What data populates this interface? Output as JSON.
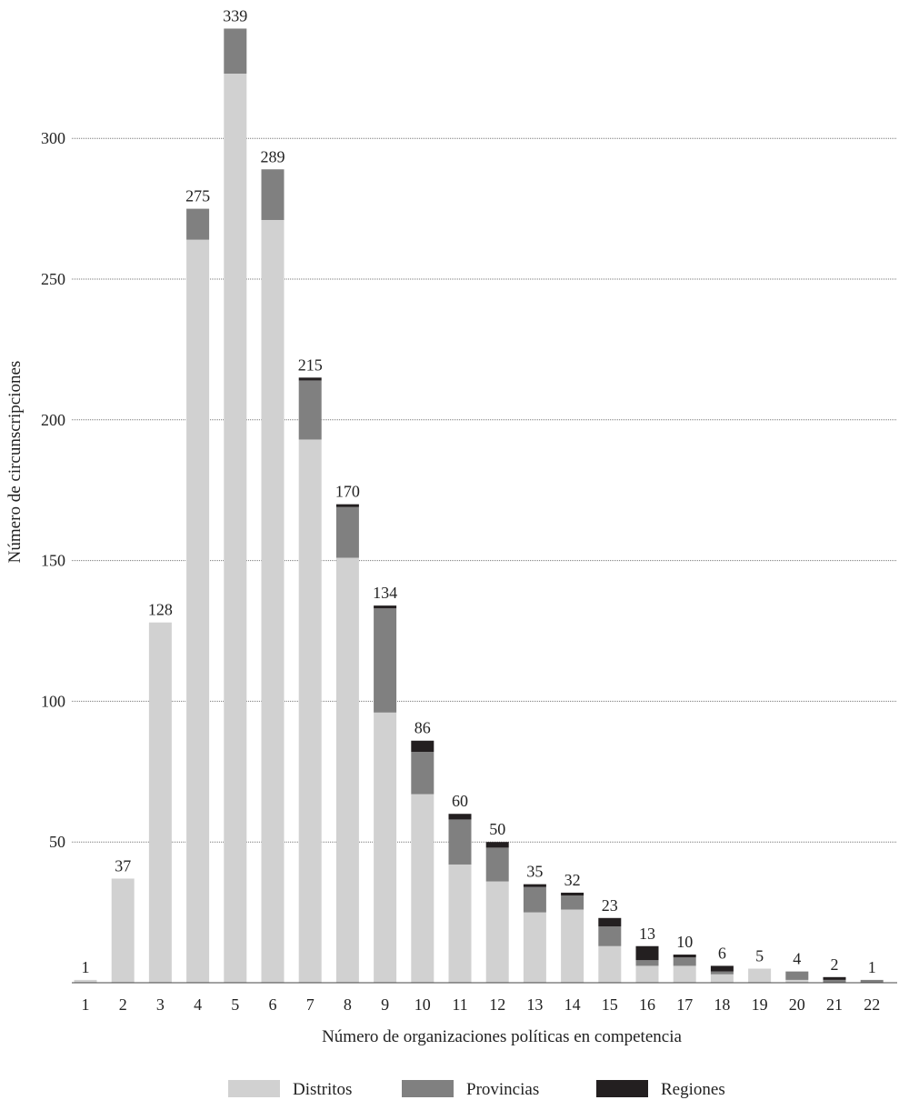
{
  "chart_data": {
    "type": "bar",
    "stacked": true,
    "xlabel": "Número de organizaciones políticas en competencia",
    "ylabel": "Número de circunscripciones",
    "ylim": [
      0,
      340
    ],
    "yticks": [
      50,
      100,
      150,
      200,
      250,
      300
    ],
    "grid": "horizontal dotted",
    "legend_position": "bottom",
    "categories": [
      "1",
      "2",
      "3",
      "4",
      "5",
      "6",
      "7",
      "8",
      "9",
      "10",
      "11",
      "12",
      "13",
      "14",
      "15",
      "16",
      "17",
      "18",
      "19",
      "20",
      "21",
      "22"
    ],
    "series": [
      {
        "name": "Distritos",
        "color": "#d1d1d1",
        "values": [
          1,
          37,
          128,
          264,
          323,
          271,
          193,
          151,
          96,
          67,
          42,
          36,
          25,
          26,
          13,
          6,
          6,
          3,
          5,
          1,
          0,
          0
        ]
      },
      {
        "name": "Provincias",
        "color": "#808080",
        "values": [
          0,
          0,
          0,
          11,
          16,
          18,
          21,
          18,
          37,
          15,
          16,
          12,
          9,
          5,
          7,
          2,
          3,
          1,
          0,
          3,
          1,
          1
        ]
      },
      {
        "name": "Regiones",
        "color": "#231f20",
        "values": [
          0,
          0,
          0,
          0,
          0,
          0,
          1,
          1,
          1,
          4,
          2,
          2,
          1,
          1,
          3,
          5,
          1,
          2,
          0,
          0,
          1,
          0
        ]
      }
    ],
    "totals": [
      1,
      37,
      128,
      275,
      339,
      289,
      215,
      170,
      134,
      86,
      60,
      50,
      35,
      32,
      23,
      13,
      10,
      6,
      5,
      4,
      2,
      1
    ]
  }
}
